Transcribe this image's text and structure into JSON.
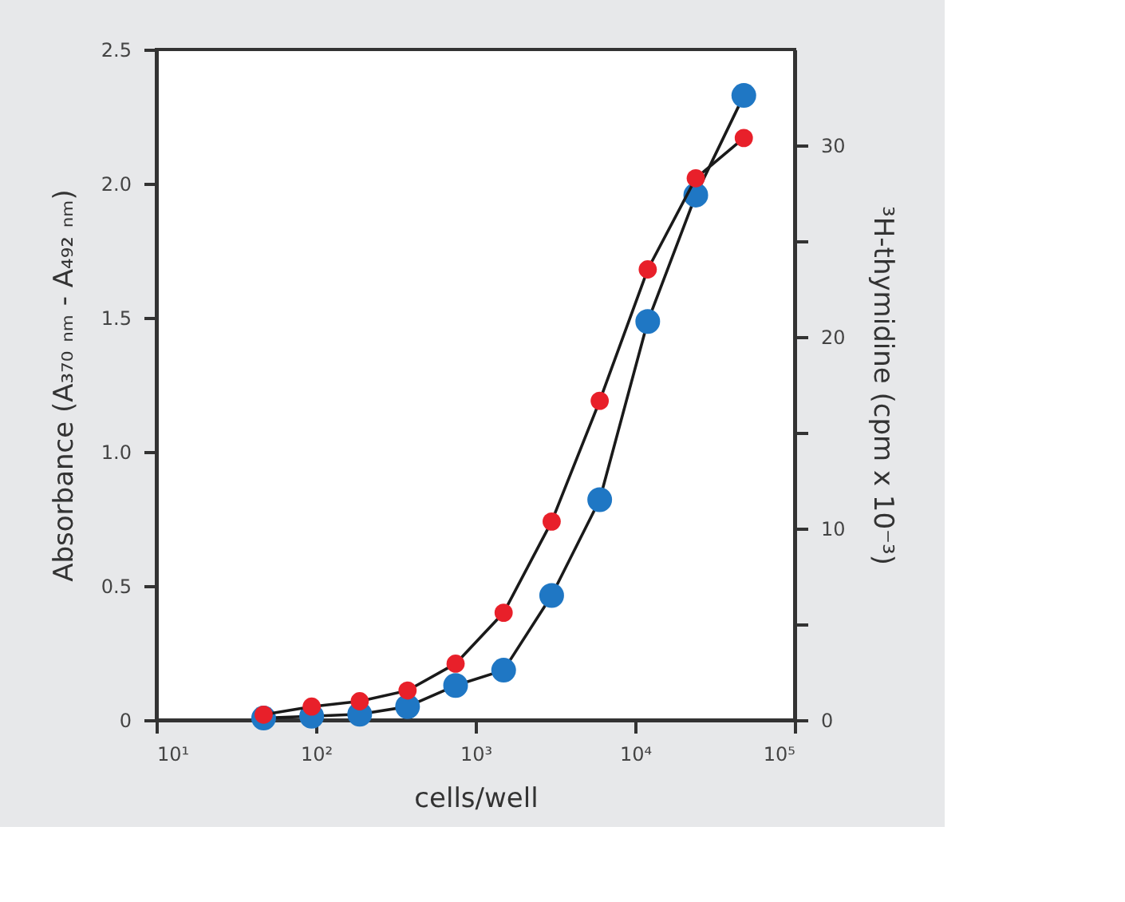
{
  "chart_data": {
    "type": "line",
    "xlabel": "cells/well",
    "ylabel": "Absorbance (A₃₇₀ ₙₘ - A₄₉₂ ₙₘ)",
    "y2label": "³H-thymidine (cpm x 10⁻³)",
    "log": "x",
    "grid": false,
    "marker": "circle",
    "line_style": "solid",
    "xlim": [
      10,
      100000
    ],
    "xticks": [
      {
        "value": 10,
        "label": "10¹"
      },
      {
        "value": 100,
        "label": "10²"
      },
      {
        "value": 1000,
        "label": "10³"
      },
      {
        "value": 10000,
        "label": "10⁴"
      },
      {
        "value": 100000,
        "label": "10⁵"
      }
    ],
    "ylim": [
      0,
      2.5
    ],
    "yticks": [
      0,
      0.5,
      {
        "value": 1,
        "label": "1.0"
      },
      1.5,
      {
        "value": 2,
        "label": "2.0"
      },
      2.5
    ],
    "y2lim": [
      0,
      35
    ],
    "y2ticks": [
      0,
      {
        "value": 5,
        "label": null
      },
      10,
      {
        "value": 15,
        "label": null
      },
      20,
      {
        "value": 25,
        "label": null
      },
      30
    ],
    "series": [
      {
        "color": "#e8202a",
        "x": [
          47,
          94,
          188,
          375,
          750,
          1500,
          3000,
          6000,
          12000,
          24000,
          48000
        ],
        "values": [
          0.02,
          0.05,
          0.07,
          0.11,
          0.21,
          0.4,
          0.74,
          1.19,
          1.68,
          2.02,
          2.17
        ]
      },
      {
        "color": "#1f77c4",
        "axis": "y2",
        "x": [
          47,
          94,
          188,
          375,
          750,
          1500,
          3000,
          6000,
          12000,
          24000,
          48000
        ],
        "values": [
          0.1,
          0.2,
          0.3,
          0.7,
          1.8,
          2.6,
          6.5,
          11.5,
          20.8,
          27.4,
          32.6
        ]
      }
    ]
  }
}
